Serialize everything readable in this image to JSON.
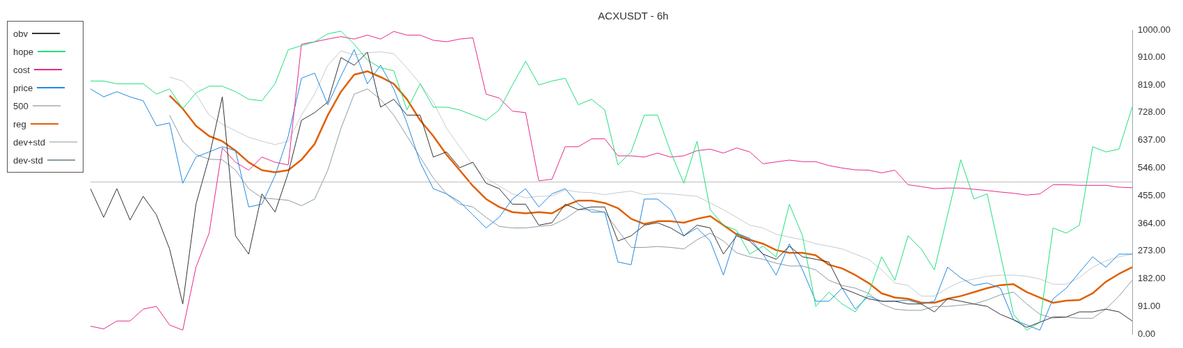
{
  "chart_data": {
    "type": "line",
    "title": "ACXUSDT - 6h",
    "categories": [
      null,
      null,
      null,
      null,
      null,
      null,
      null,
      null,
      null,
      null,
      null,
      null,
      null,
      null,
      null,
      null,
      null,
      null,
      null,
      null,
      null,
      null,
      null,
      null,
      null,
      null,
      null,
      null,
      null,
      null,
      null,
      null,
      null,
      null,
      null,
      null,
      null,
      null,
      null,
      null,
      null,
      null,
      null,
      null,
      null,
      null,
      null,
      null,
      null,
      null,
      null,
      null,
      null,
      null,
      null,
      null,
      null,
      null,
      null,
      null,
      null,
      null,
      null,
      null,
      null,
      null,
      null,
      null,
      null,
      null,
      null,
      null,
      null,
      null,
      null,
      null,
      null,
      null,
      null,
      null
    ],
    "series": [
      {
        "name": "obv",
        "color": "#333333",
        "values": [
          478,
          384,
          478,
          375,
          453,
          392,
          280,
          99,
          427,
          582,
          780,
          323,
          263,
          461,
          401,
          530,
          703,
          728,
          763,
          909,
          884,
          927,
          746,
          772,
          720,
          720,
          582,
          599,
          547,
          565,
          496,
          478,
          427,
          427,
          358,
          366,
          427,
          409,
          418,
          418,
          306,
          323,
          358,
          366,
          349,
          323,
          358,
          349,
          263,
          323,
          306,
          263,
          246,
          289,
          254,
          246,
          237,
          151,
          134,
          116,
          108,
          108,
          99,
          99,
          73,
          116,
          108,
          99,
          91,
          65,
          47,
          22,
          39,
          56,
          56,
          73,
          73,
          82,
          73,
          43
        ]
      },
      {
        "name": "hope",
        "color": "#1ee07a",
        "values": [
          832,
          832,
          823,
          823,
          823,
          789,
          806,
          741,
          793,
          815,
          815,
          797,
          772,
          767,
          823,
          935,
          948,
          961,
          987,
          996,
          953,
          901,
          875,
          866,
          737,
          823,
          746,
          746,
          737,
          720,
          703,
          737,
          819,
          897,
          819,
          832,
          841,
          754,
          772,
          737,
          556,
          599,
          720,
          720,
          599,
          496,
          634,
          409,
          358,
          341,
          263,
          289,
          254,
          427,
          323,
          91,
          138,
          99,
          73,
          134,
          254,
          177,
          323,
          280,
          211,
          392,
          573,
          444,
          461,
          263,
          65,
          13,
          39,
          349,
          332,
          358,
          616,
          599,
          608,
          746
        ]
      },
      {
        "name": "cost",
        "color": "#e8288a",
        "values": [
          26,
          17,
          43,
          43,
          82,
          91,
          30,
          13,
          220,
          332,
          612,
          565,
          539,
          582,
          565,
          556,
          953,
          961,
          970,
          978,
          970,
          983,
          970,
          995,
          983,
          983,
          966,
          961,
          970,
          974,
          789,
          776,
          733,
          728,
          504,
          509,
          616,
          616,
          642,
          642,
          586,
          586,
          582,
          595,
          582,
          586,
          603,
          608,
          595,
          612,
          599,
          560,
          566,
          572,
          567,
          567,
          554,
          546,
          540,
          539,
          530,
          539,
          491,
          485,
          478,
          480,
          480,
          476,
          472,
          467,
          463,
          457,
          461,
          491,
          491,
          489,
          489,
          489,
          483,
          481
        ]
      },
      {
        "name": "price",
        "color": "#1e88e5",
        "values": [
          806,
          780,
          797,
          780,
          767,
          685,
          694,
          496,
          582,
          599,
          616,
          603,
          418,
          427,
          521,
          651,
          841,
          858,
          754,
          849,
          935,
          823,
          884,
          806,
          694,
          565,
          478,
          461,
          435,
          392,
          349,
          384,
          444,
          478,
          418,
          461,
          478,
          427,
          401,
          401,
          237,
          228,
          444,
          444,
          409,
          323,
          349,
          306,
          194,
          332,
          315,
          263,
          194,
          297,
          211,
          108,
          108,
          151,
          82,
          125,
          108,
          108,
          112,
          99,
          108,
          220,
          185,
          160,
          168,
          151,
          47,
          30,
          13,
          116,
          151,
          203,
          254,
          220,
          263,
          263
        ]
      },
      {
        "name": "500",
        "color": "#bdbdbd",
        "values": [
          500,
          500,
          500,
          500,
          500,
          500,
          500,
          500,
          500,
          500,
          500,
          500,
          500,
          500,
          500,
          500,
          500,
          500,
          500,
          500,
          500,
          500,
          500,
          500,
          500,
          500,
          500,
          500,
          500,
          500,
          500,
          500,
          500,
          500,
          500,
          500,
          500,
          500,
          500,
          500,
          500,
          500,
          500,
          500,
          500,
          500,
          500,
          500,
          500,
          500,
          500,
          500,
          500,
          500,
          500,
          500,
          500,
          500,
          500,
          500,
          500,
          500,
          500,
          500,
          500,
          500,
          500,
          500,
          500,
          500,
          500,
          500,
          500,
          500,
          500,
          500,
          500,
          500,
          500,
          500
        ]
      },
      {
        "name": "reg",
        "color": "#e06000",
        "values": [
          null,
          null,
          null,
          null,
          null,
          null,
          784,
          741,
          685,
          651,
          634,
          603,
          565,
          539,
          532,
          539,
          573,
          625,
          720,
          797,
          853,
          864,
          845,
          823,
          772,
          703,
          651,
          590,
          539,
          487,
          444,
          418,
          401,
          397,
          401,
          397,
          422,
          439,
          439,
          431,
          414,
          379,
          362,
          371,
          371,
          366,
          379,
          388,
          358,
          328,
          310,
          297,
          276,
          267,
          267,
          259,
          228,
          216,
          194,
          168,
          134,
          120,
          116,
          103,
          103,
          116,
          125,
          138,
          151,
          161,
          164,
          138,
          120,
          103,
          110,
          112,
          134,
          172,
          198,
          220
        ]
      },
      {
        "name": "dev+std",
        "color": "#c3cbd0",
        "values": [
          null,
          null,
          null,
          null,
          null,
          null,
          845,
          832,
          789,
          720,
          690,
          668,
          647,
          634,
          623,
          634,
          720,
          789,
          884,
          931,
          918,
          925,
          928,
          922,
          875,
          823,
          763,
          677,
          616,
          556,
          513,
          487,
          461,
          448,
          453,
          454,
          474,
          467,
          465,
          458,
          465,
          470,
          458,
          463,
          461,
          457,
          453,
          431,
          409,
          384,
          358,
          349,
          328,
          319,
          310,
          297,
          289,
          280,
          263,
          246,
          211,
          168,
          160,
          125,
          125,
          151,
          172,
          181,
          190,
          194,
          194,
          190,
          181,
          164,
          164,
          186,
          220,
          241,
          254,
          263
        ]
      },
      {
        "name": "dev-std",
        "color": "#8a9ba6",
        "values": [
          null,
          null,
          null,
          null,
          null,
          null,
          720,
          634,
          590,
          575,
          573,
          539,
          478,
          448,
          444,
          440,
          422,
          444,
          539,
          677,
          789,
          806,
          772,
          720,
          651,
          582,
          513,
          461,
          427,
          418,
          384,
          354,
          349,
          349,
          354,
          358,
          379,
          409,
          409,
          401,
          341,
          285,
          285,
          288,
          285,
          280,
          310,
          332,
          306,
          267,
          254,
          246,
          233,
          224,
          224,
          211,
          177,
          160,
          151,
          134,
          99,
          82,
          78,
          78,
          91,
          91,
          95,
          99,
          112,
          129,
          138,
          99,
          65,
          52,
          56,
          52,
          52,
          82,
          125,
          177
        ]
      }
    ],
    "ylim": [
      0,
      1000
    ],
    "yticks": [
      {
        "value": 0,
        "label": "0.00"
      },
      {
        "value": 91,
        "label": "91.00"
      },
      {
        "value": 182,
        "label": "182.00"
      },
      {
        "value": 273,
        "label": "273.00"
      },
      {
        "value": 364,
        "label": "364.00"
      },
      {
        "value": 455,
        "label": "455.00"
      },
      {
        "value": 546,
        "label": "546.00"
      },
      {
        "value": 637,
        "label": "637.00"
      },
      {
        "value": 728,
        "label": "728.00"
      },
      {
        "value": 819,
        "label": "819.00"
      },
      {
        "value": 910,
        "label": "910.00"
      },
      {
        "value": 1000,
        "label": "1000.00"
      }
    ],
    "tick_labels": "y",
    "grid": false,
    "legend": "left",
    "marker": "none",
    "line_style": "solid"
  }
}
